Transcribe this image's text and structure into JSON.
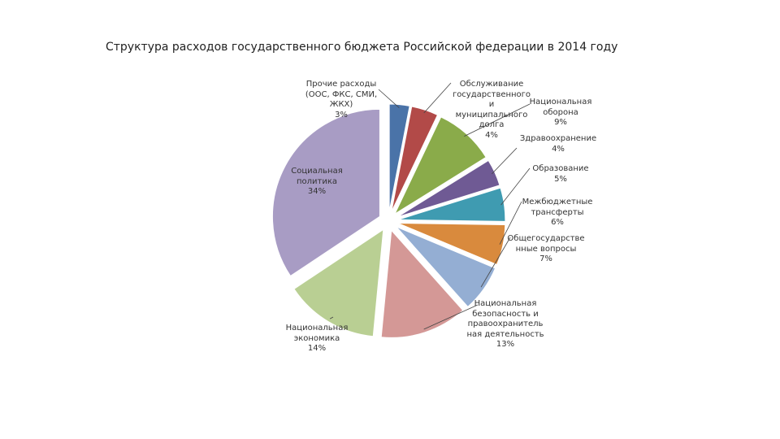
{
  "chart_data": {
    "type": "pie",
    "title": "Структура расходов государственного бюджета Российской федерации в 2014 году",
    "categories": [
      "Прочие расходы\n(ООС, ФКС, СМИ,\nЖКХ)",
      "Обслуживание\nгосударственного\nи\nмуниципального\nдолга",
      "Национальная\nоборона",
      "Здравоохранение",
      "Образование",
      "Межбюджетные\nтрансферты",
      "Общегосударстве\nнные вопросы",
      "Национальная\nбезопасность и\nправоохранитель\nная деятельность",
      "Национальная\nэкономика",
      "Социальная\nполитика"
    ],
    "values": [
      3,
      4,
      9,
      4,
      5,
      6,
      7,
      13,
      14,
      34
    ],
    "value_labels": [
      "3%",
      "4%",
      "9%",
      "4%",
      "5%",
      "6%",
      "7%",
      "13%",
      "14%",
      "34%"
    ],
    "colors": [
      "#4a73a8",
      "#b24a48",
      "#8aab4a",
      "#6f5a94",
      "#3f9bb1",
      "#d98a3d",
      "#94aed3",
      "#d49896",
      "#b9cf93",
      "#a89cc4"
    ]
  }
}
